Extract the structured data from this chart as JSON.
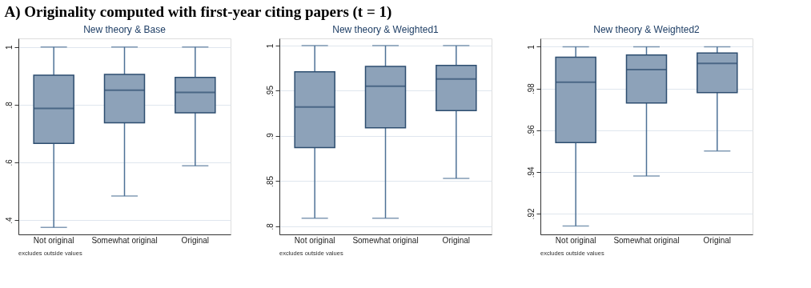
{
  "chart_data": [
    {
      "type": "box",
      "title": "A) Originality computed with first-year citing papers (t = 1)",
      "subtitle": "New theory & Base",
      "categories": [
        "Not original",
        "Somewhat original",
        "Original"
      ],
      "color": "#8da2b9",
      "ylim": [
        0.35,
        1.03
      ],
      "yticks": [
        {
          "value": 0.4,
          "label": ".4"
        },
        {
          "value": 0.6,
          "label": ".6"
        },
        {
          "value": 0.8,
          "label": ".8"
        },
        1
      ],
      "grid": "y",
      "annotations": [
        "excludes outside values"
      ],
      "boxes": [
        {
          "low": 0.374,
          "q1": 0.666,
          "median": 0.787,
          "q3": 0.902,
          "high": 1
        },
        {
          "low": 0.483,
          "q1": 0.737,
          "median": 0.85,
          "q3": 0.905,
          "high": 1
        },
        {
          "low": 0.588,
          "q1": 0.772,
          "median": 0.843,
          "q3": 0.895,
          "high": 1
        }
      ]
    },
    {
      "type": "box",
      "subtitle": "New theory & Weighted1",
      "categories": [
        "Not original",
        "Somewhat original",
        "Original"
      ],
      "color": "#8da2b9",
      "ylim": [
        0.791,
        1.008
      ],
      "yticks": [
        {
          "value": 0.8,
          "label": ".8"
        },
        {
          "value": 0.85,
          "label": ".85"
        },
        {
          "value": 0.9,
          "label": ".9"
        },
        {
          "value": 0.95,
          "label": ".95"
        },
        1
      ],
      "grid": "y",
      "annotations": [
        "excludes outside values"
      ],
      "boxes": [
        {
          "low": 0.809,
          "q1": 0.887,
          "median": 0.932,
          "q3": 0.971,
          "high": 1
        },
        {
          "low": 0.809,
          "q1": 0.909,
          "median": 0.955,
          "q3": 0.977,
          "high": 1
        },
        {
          "low": 0.853,
          "q1": 0.928,
          "median": 0.963,
          "q3": 0.978,
          "high": 1
        }
      ]
    },
    {
      "type": "box",
      "subtitle": "New theory & Weighted2",
      "categories": [
        "Not original",
        "Somewhat original",
        "Original"
      ],
      "color": "#8da2b9",
      "ylim": [
        0.91,
        1.004
      ],
      "yticks": [
        {
          "value": 0.92,
          "label": ".92"
        },
        {
          "value": 0.94,
          "label": ".94"
        },
        {
          "value": 0.96,
          "label": ".96"
        },
        {
          "value": 0.98,
          "label": ".98"
        },
        1
      ],
      "grid": "y",
      "annotations": [
        "excludes outside values"
      ],
      "boxes": [
        {
          "low": 0.914,
          "q1": 0.954,
          "median": 0.983,
          "q3": 0.995,
          "high": 1
        },
        {
          "low": 0.938,
          "q1": 0.973,
          "median": 0.989,
          "q3": 0.996,
          "high": 1
        },
        {
          "low": 0.95,
          "q1": 0.978,
          "median": 0.992,
          "q3": 0.997,
          "high": 1
        }
      ]
    }
  ]
}
